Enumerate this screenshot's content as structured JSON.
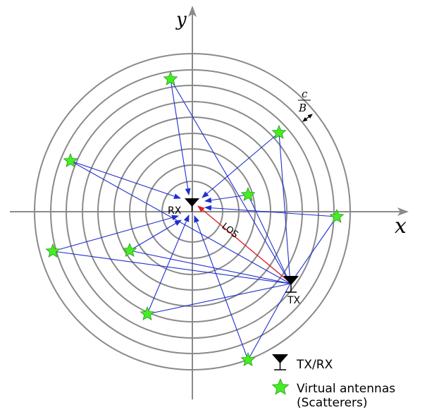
{
  "axes": {
    "x_label": "x",
    "y_label": "y"
  },
  "labels": {
    "rx": "RX",
    "tx": "TX",
    "los": "LOS",
    "ring_spacing_numerator": "c",
    "ring_spacing_denominator": "B"
  },
  "legend": {
    "antenna_label": "TX/RX",
    "scatterer_label_line1": "Virtual antennas",
    "scatterer_label_line2": "(Scatterers)"
  },
  "colors": {
    "rings": "#8a8a8a",
    "axes": "#8a8a8a",
    "paths": "#1f2fd0",
    "los": "#e02020",
    "scatterer": "#44ee22",
    "scatterer_stroke": "#2a9a1a",
    "antenna": "#000000"
  },
  "icons": {
    "antenna": "antenna-icon",
    "scatterer": "star-icon"
  }
}
